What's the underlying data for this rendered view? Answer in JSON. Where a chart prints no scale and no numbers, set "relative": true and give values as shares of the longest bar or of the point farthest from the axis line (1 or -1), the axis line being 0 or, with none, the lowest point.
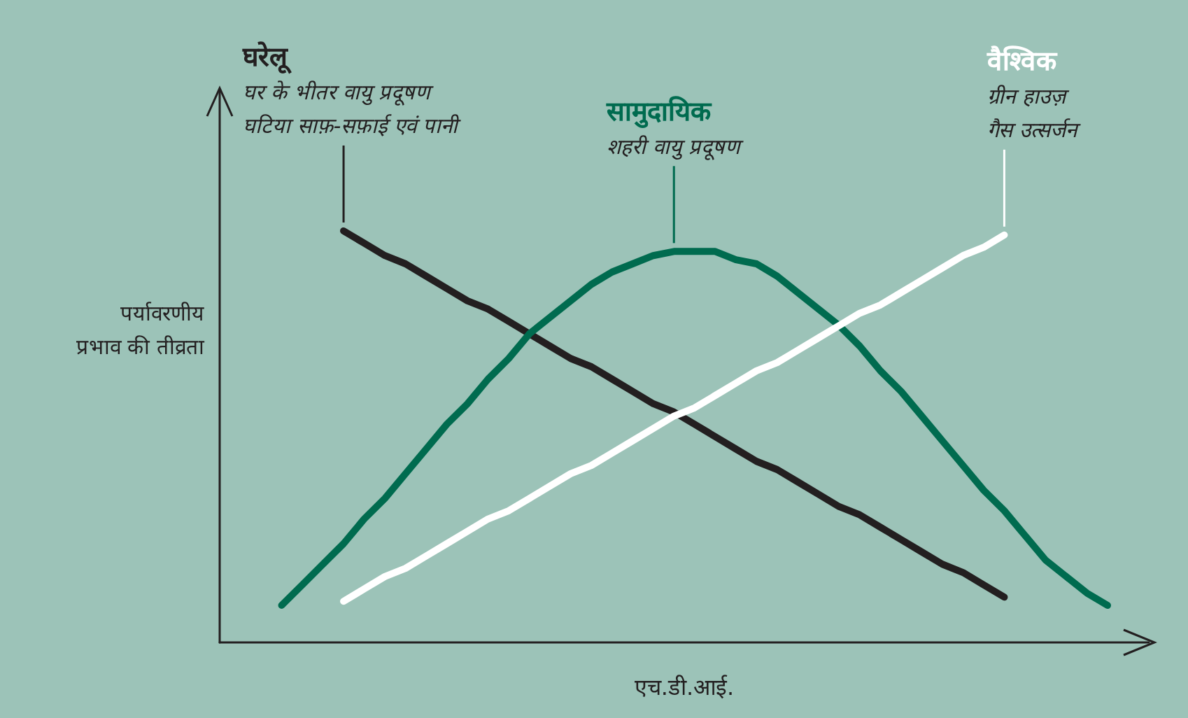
{
  "chart_data": {
    "type": "line",
    "relative": true,
    "xlabel": "एच.डी.आई.",
    "ylabel": "पर्यावरणीय प्रभाव की तीव्रता",
    "categories": [
      null,
      null,
      null,
      null,
      null,
      null,
      null,
      null,
      null,
      null,
      null,
      null,
      null,
      null,
      null,
      null,
      null,
      null,
      null,
      null,
      null,
      null,
      null,
      null,
      null,
      null,
      null,
      null,
      null,
      null,
      null,
      null,
      null,
      null,
      null,
      null,
      null,
      null,
      null,
      null,
      null
    ],
    "series": [
      {
        "name": "घरेलू",
        "color": "#231f20",
        "values": [
          null,
          null,
          null,
          1.0,
          0.97,
          0.94,
          0.92,
          0.89,
          0.86,
          0.83,
          0.81,
          0.78,
          0.75,
          0.72,
          0.69,
          0.67,
          0.64,
          0.61,
          0.58,
          0.56,
          0.53,
          0.5,
          0.47,
          0.44,
          0.42,
          0.39,
          0.36,
          0.33,
          0.31,
          0.28,
          0.25,
          0.22,
          0.19,
          0.17,
          0.14,
          0.11,
          null,
          null,
          null,
          null,
          null
        ]
      },
      {
        "name": "सामुदायिक",
        "color": "#006b4f",
        "values": [
          0.09,
          0.14,
          0.19,
          0.24,
          0.3,
          0.35,
          0.41,
          0.47,
          0.53,
          0.58,
          0.64,
          0.69,
          0.75,
          0.79,
          0.83,
          0.87,
          0.9,
          0.92,
          0.94,
          0.95,
          0.95,
          0.95,
          0.93,
          0.92,
          0.89,
          0.85,
          0.81,
          0.77,
          0.72,
          0.66,
          0.61,
          0.55,
          0.49,
          0.43,
          0.37,
          0.32,
          0.26,
          0.2,
          0.16,
          0.12,
          0.09
        ]
      },
      {
        "name": "वैश्विक",
        "color": "#ffffff",
        "values": [
          null,
          null,
          null,
          0.1,
          0.13,
          0.16,
          0.18,
          0.21,
          0.24,
          0.27,
          0.3,
          0.32,
          0.35,
          0.38,
          0.41,
          0.43,
          0.46,
          0.49,
          0.52,
          0.55,
          0.57,
          0.6,
          0.63,
          0.66,
          0.68,
          0.71,
          0.74,
          0.77,
          0.8,
          0.82,
          0.85,
          0.88,
          0.91,
          0.94,
          0.96,
          0.99,
          null,
          null,
          null,
          null,
          null
        ]
      }
    ],
    "annotations": [
      "घर के भीतर वायु प्रदूषण\nघटिया साफ़-सफ़ाई एवं पानी",
      "शहरी वायु प्रदूषण",
      "ग्रीन हाउज़\nगैस उत्सर्जन"
    ],
    "legend": false
  }
}
